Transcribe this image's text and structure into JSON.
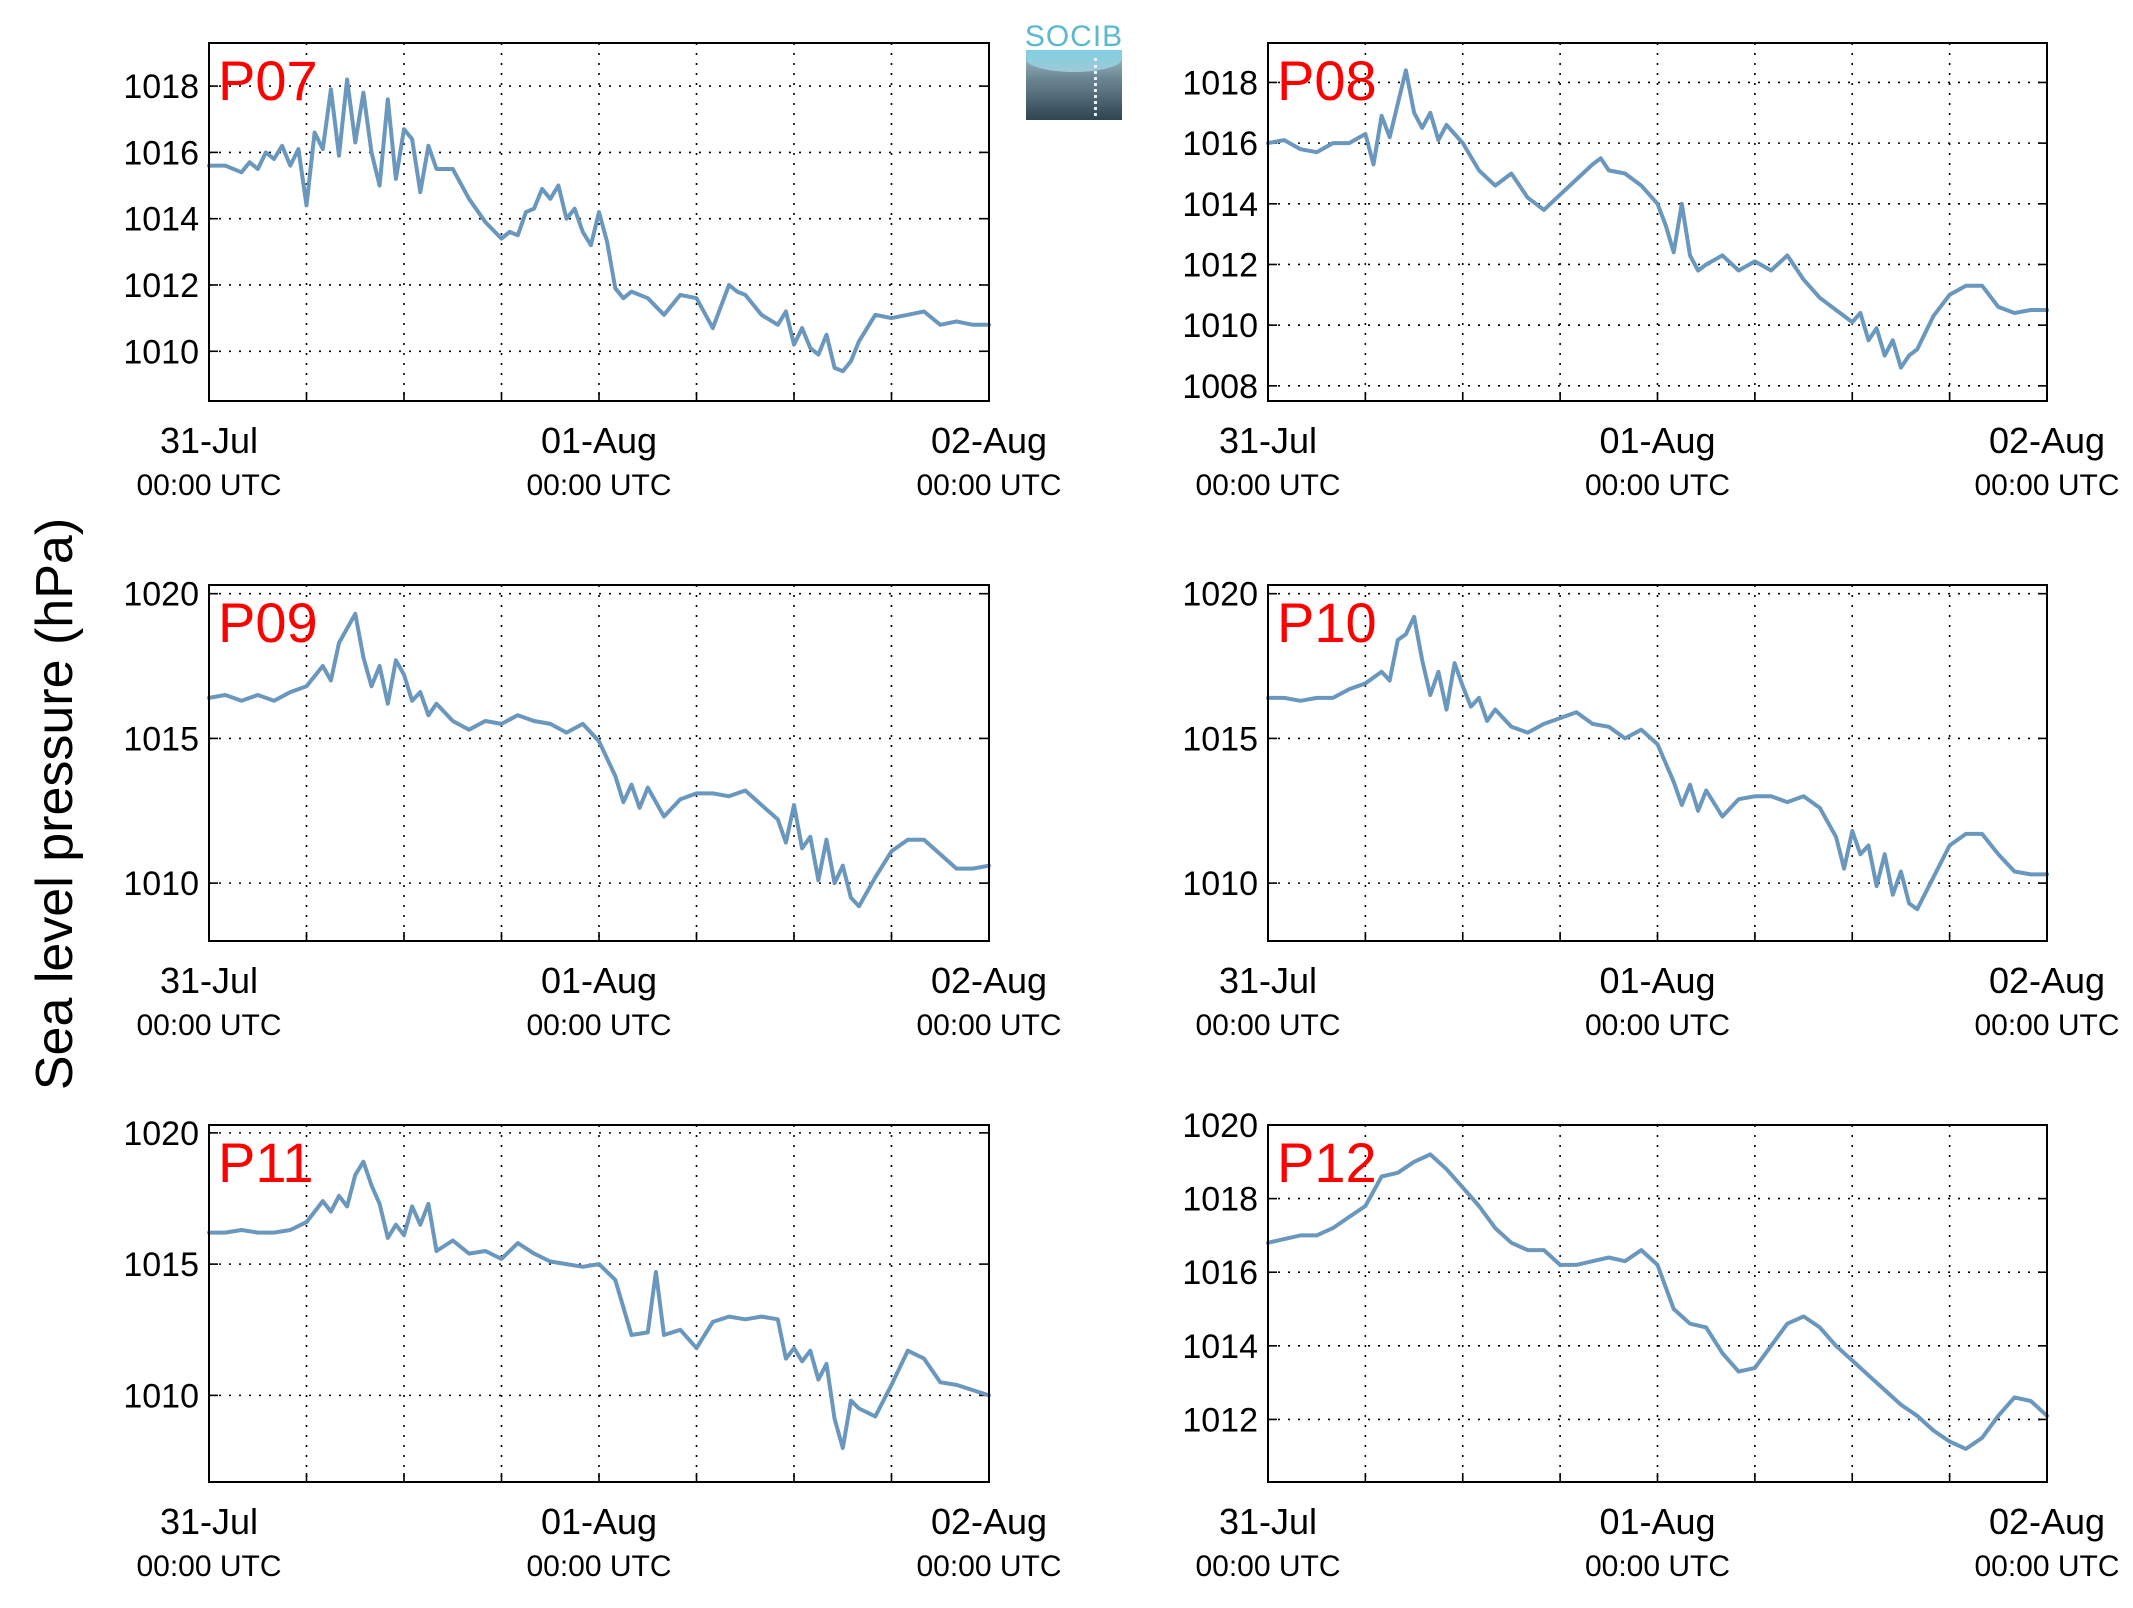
{
  "figure": {
    "ylabel": "Sea level pressure (hPa)",
    "logo_text": "SOCIB",
    "line_color": "#6a97bd",
    "label_color": "#ff0000"
  },
  "chart_data": [
    {
      "type": "line",
      "label": "P07",
      "x_range_hours": [
        0,
        48
      ],
      "x_ticks": [
        {
          "hour": 0,
          "date": "31-Jul",
          "time": "00:00 UTC"
        },
        {
          "hour": 24,
          "date": "01-Aug",
          "time": "00:00 UTC"
        },
        {
          "hour": 48,
          "date": "02-Aug",
          "time": "00:00 UTC"
        }
      ],
      "x_grid_hours": [
        6,
        12,
        18,
        24,
        30,
        36,
        42
      ],
      "ylim": [
        1008.5,
        1019.3
      ],
      "yticks": [
        1010,
        1012,
        1014,
        1016,
        1018
      ],
      "grid": true,
      "x": [
        0,
        1,
        2,
        2.5,
        3,
        3.5,
        4,
        4.5,
        5,
        5.5,
        6,
        6.5,
        7,
        7.5,
        8,
        8.5,
        9,
        9.5,
        10,
        10.5,
        11,
        11.5,
        12,
        12.5,
        13,
        13.5,
        14,
        15,
        16,
        17,
        18,
        18.5,
        19,
        19.5,
        20,
        20.5,
        21,
        21.5,
        22,
        22.5,
        23,
        23.5,
        24,
        24.5,
        25,
        25.5,
        26,
        27,
        28,
        29,
        30,
        31,
        32,
        32.5,
        33,
        34,
        35,
        35.5,
        36,
        36.5,
        37,
        37.5,
        38,
        38.5,
        39,
        39.5,
        40,
        41,
        42,
        43,
        44,
        45,
        46,
        47,
        48
      ],
      "y": [
        1015.6,
        1015.6,
        1015.4,
        1015.7,
        1015.5,
        1016,
        1015.8,
        1016.2,
        1015.6,
        1016.1,
        1014.4,
        1016.6,
        1016.1,
        1017.9,
        1015.9,
        1018.2,
        1016.3,
        1017.8,
        1016,
        1015,
        1017.6,
        1015.2,
        1016.7,
        1016.4,
        1014.8,
        1016.2,
        1015.5,
        1015.5,
        1014.6,
        1013.9,
        1013.4,
        1013.6,
        1013.5,
        1014.2,
        1014.3,
        1014.9,
        1014.6,
        1015,
        1014,
        1014.3,
        1013.6,
        1013.2,
        1014.2,
        1013.3,
        1011.9,
        1011.6,
        1011.8,
        1011.6,
        1011.1,
        1011.7,
        1011.6,
        1010.7,
        1012,
        1011.8,
        1011.7,
        1011.1,
        1010.8,
        1011.2,
        1010.2,
        1010.7,
        1010.1,
        1009.9,
        1010.5,
        1009.5,
        1009.4,
        1009.7,
        1010.3,
        1011.1,
        1011,
        1011.1,
        1011.2,
        1010.8,
        1010.9,
        1010.8,
        1010.8
      ]
    },
    {
      "type": "line",
      "label": "P08",
      "x_range_hours": [
        0,
        48
      ],
      "x_ticks": [
        {
          "hour": 0,
          "date": "31-Jul",
          "time": "00:00 UTC"
        },
        {
          "hour": 24,
          "date": "01-Aug",
          "time": "00:00 UTC"
        },
        {
          "hour": 48,
          "date": "02-Aug",
          "time": "00:00 UTC"
        }
      ],
      "x_grid_hours": [
        6,
        12,
        18,
        24,
        30,
        36,
        42
      ],
      "ylim": [
        1007.5,
        1019.3
      ],
      "yticks": [
        1008,
        1010,
        1012,
        1014,
        1016,
        1018
      ],
      "grid": true,
      "x": [
        0,
        1,
        2,
        3,
        4,
        5,
        6,
        6.5,
        7,
        7.5,
        8,
        8.5,
        9,
        9.5,
        10,
        10.5,
        11,
        11.5,
        12,
        13,
        14,
        15,
        16,
        17,
        18,
        19,
        20,
        20.5,
        21,
        22,
        23,
        24,
        24.5,
        25,
        25.5,
        26,
        26.5,
        27,
        28,
        29,
        30,
        31,
        32,
        33,
        34,
        35,
        36,
        36.5,
        37,
        37.5,
        38,
        38.5,
        39,
        39.5,
        40,
        41,
        42,
        43,
        44,
        45,
        46,
        47,
        48
      ],
      "y": [
        1016,
        1016.1,
        1015.8,
        1015.7,
        1016,
        1016,
        1016.3,
        1015.3,
        1016.9,
        1016.2,
        1017.3,
        1018.4,
        1017,
        1016.5,
        1017,
        1016.1,
        1016.6,
        1016.3,
        1016,
        1015.1,
        1014.6,
        1015,
        1014.2,
        1013.8,
        1014.3,
        1014.8,
        1015.3,
        1015.5,
        1015.1,
        1015,
        1014.6,
        1014,
        1013.3,
        1012.4,
        1014,
        1012.3,
        1011.8,
        1012,
        1012.3,
        1011.8,
        1012.1,
        1011.8,
        1012.3,
        1011.5,
        1010.9,
        1010.5,
        1010.1,
        1010.4,
        1009.5,
        1009.9,
        1009,
        1009.5,
        1008.6,
        1009,
        1009.2,
        1010.3,
        1011,
        1011.3,
        1011.3,
        1010.6,
        1010.4,
        1010.5,
        1010.5
      ]
    },
    {
      "type": "line",
      "label": "P09",
      "x_range_hours": [
        0,
        48
      ],
      "x_ticks": [
        {
          "hour": 0,
          "date": "31-Jul",
          "time": "00:00 UTC"
        },
        {
          "hour": 24,
          "date": "01-Aug",
          "time": "00:00 UTC"
        },
        {
          "hour": 48,
          "date": "02-Aug",
          "time": "00:00 UTC"
        }
      ],
      "x_grid_hours": [
        6,
        12,
        18,
        24,
        30,
        36,
        42
      ],
      "ylim": [
        1008,
        1020.3
      ],
      "yticks": [
        1010,
        1015,
        1020
      ],
      "grid": true,
      "x": [
        0,
        1,
        2,
        3,
        4,
        5,
        6,
        7,
        7.5,
        8,
        8.5,
        9,
        9.5,
        10,
        10.5,
        11,
        11.5,
        12,
        12.5,
        13,
        13.5,
        14,
        15,
        16,
        17,
        18,
        19,
        20,
        21,
        22,
        23,
        24,
        25,
        25.5,
        26,
        26.5,
        27,
        28,
        29,
        30,
        31,
        32,
        33,
        34,
        35,
        35.5,
        36,
        36.5,
        37,
        37.5,
        38,
        38.5,
        39,
        39.5,
        40,
        41,
        42,
        43,
        44,
        45,
        46,
        47,
        48
      ],
      "y": [
        1016.4,
        1016.5,
        1016.3,
        1016.5,
        1016.3,
        1016.6,
        1016.8,
        1017.5,
        1017,
        1018.3,
        1018.8,
        1019.3,
        1017.8,
        1016.8,
        1017.5,
        1016.2,
        1017.7,
        1017.2,
        1016.3,
        1016.6,
        1015.8,
        1016.2,
        1015.6,
        1015.3,
        1015.6,
        1015.5,
        1015.8,
        1015.6,
        1015.5,
        1015.2,
        1015.5,
        1014.9,
        1013.7,
        1012.8,
        1013.4,
        1012.6,
        1013.3,
        1012.3,
        1012.9,
        1013.1,
        1013.1,
        1013,
        1013.2,
        1012.7,
        1012.2,
        1011.4,
        1012.7,
        1011.2,
        1011.6,
        1010.1,
        1011.5,
        1010,
        1010.6,
        1009.5,
        1009.2,
        1010.2,
        1011.1,
        1011.5,
        1011.5,
        1011,
        1010.5,
        1010.5,
        1010.6
      ]
    },
    {
      "type": "line",
      "label": "P10",
      "x_range_hours": [
        0,
        48
      ],
      "x_ticks": [
        {
          "hour": 0,
          "date": "31-Jul",
          "time": "00:00 UTC"
        },
        {
          "hour": 24,
          "date": "01-Aug",
          "time": "00:00 UTC"
        },
        {
          "hour": 48,
          "date": "02-Aug",
          "time": "00:00 UTC"
        }
      ],
      "x_grid_hours": [
        6,
        12,
        18,
        24,
        30,
        36,
        42
      ],
      "ylim": [
        1008,
        1020.3
      ],
      "yticks": [
        1010,
        1015,
        1020
      ],
      "grid": true,
      "x": [
        0,
        1,
        2,
        3,
        4,
        5,
        6,
        7,
        7.5,
        8,
        8.5,
        9,
        9.5,
        10,
        10.5,
        11,
        11.5,
        12,
        12.5,
        13,
        13.5,
        14,
        15,
        16,
        17,
        18,
        19,
        20,
        21,
        22,
        23,
        24,
        25,
        25.5,
        26,
        26.5,
        27,
        28,
        29,
        30,
        31,
        32,
        33,
        34,
        35,
        35.5,
        36,
        36.5,
        37,
        37.5,
        38,
        38.5,
        39,
        39.5,
        40,
        41,
        42,
        43,
        44,
        45,
        46,
        47,
        48
      ],
      "y": [
        1016.4,
        1016.4,
        1016.3,
        1016.4,
        1016.4,
        1016.7,
        1016.9,
        1017.3,
        1017,
        1018.4,
        1018.6,
        1019.2,
        1017.7,
        1016.5,
        1017.3,
        1016,
        1017.6,
        1016.8,
        1016.1,
        1016.4,
        1015.6,
        1016,
        1015.4,
        1015.2,
        1015.5,
        1015.7,
        1015.9,
        1015.5,
        1015.4,
        1015,
        1015.3,
        1014.8,
        1013.5,
        1012.7,
        1013.4,
        1012.5,
        1013.2,
        1012.3,
        1012.9,
        1013,
        1013,
        1012.8,
        1013,
        1012.6,
        1011.6,
        1010.5,
        1011.8,
        1011,
        1011.3,
        1009.9,
        1011,
        1009.6,
        1010.4,
        1009.3,
        1009.1,
        1010.2,
        1011.3,
        1011.7,
        1011.7,
        1011,
        1010.4,
        1010.3,
        1010.3
      ]
    },
    {
      "type": "line",
      "label": "P11",
      "x_range_hours": [
        0,
        48
      ],
      "x_ticks": [
        {
          "hour": 0,
          "date": "31-Jul",
          "time": "00:00 UTC"
        },
        {
          "hour": 24,
          "date": "01-Aug",
          "time": "00:00 UTC"
        },
        {
          "hour": 48,
          "date": "02-Aug",
          "time": "00:00 UTC"
        }
      ],
      "x_grid_hours": [
        6,
        12,
        18,
        24,
        30,
        36,
        42
      ],
      "ylim": [
        1006.7,
        1020.3
      ],
      "yticks": [
        1010,
        1015,
        1020
      ],
      "grid": true,
      "x": [
        0,
        1,
        2,
        3,
        4,
        5,
        6,
        7,
        7.5,
        8,
        8.5,
        9,
        9.5,
        10,
        10.5,
        11,
        11.5,
        12,
        12.5,
        13,
        13.5,
        14,
        15,
        16,
        17,
        18,
        19,
        20,
        21,
        22,
        23,
        24,
        25,
        26,
        27,
        27.5,
        28,
        29,
        30,
        31,
        32,
        33,
        34,
        35,
        35.5,
        36,
        36.5,
        37,
        37.5,
        38,
        38.5,
        39,
        39.5,
        40,
        41,
        42,
        43,
        44,
        45,
        46,
        47,
        48
      ],
      "y": [
        1016.2,
        1016.2,
        1016.3,
        1016.2,
        1016.2,
        1016.3,
        1016.6,
        1017.4,
        1017,
        1017.6,
        1017.2,
        1018.4,
        1018.9,
        1018,
        1017.3,
        1016,
        1016.5,
        1016.1,
        1017.2,
        1016.5,
        1017.3,
        1015.5,
        1015.9,
        1015.4,
        1015.5,
        1015.2,
        1015.8,
        1015.4,
        1015.1,
        1015,
        1014.9,
        1015,
        1014.4,
        1012.3,
        1012.4,
        1014.7,
        1012.3,
        1012.5,
        1011.8,
        1012.8,
        1013,
        1012.9,
        1013,
        1012.9,
        1011.4,
        1011.8,
        1011.3,
        1011.7,
        1010.6,
        1011.2,
        1009.1,
        1008,
        1009.8,
        1009.5,
        1009.2,
        1010.4,
        1011.7,
        1011.4,
        1010.5,
        1010.4,
        1010.2,
        1010
      ]
    },
    {
      "type": "line",
      "label": "P12",
      "x_range_hours": [
        0,
        48
      ],
      "x_ticks": [
        {
          "hour": 0,
          "date": "31-Jul",
          "time": "00:00 UTC"
        },
        {
          "hour": 24,
          "date": "01-Aug",
          "time": "00:00 UTC"
        },
        {
          "hour": 48,
          "date": "02-Aug",
          "time": "00:00 UTC"
        }
      ],
      "x_grid_hours": [
        6,
        12,
        18,
        24,
        30,
        36,
        42
      ],
      "ylim": [
        1010.3,
        1020
      ],
      "yticks": [
        1012,
        1014,
        1016,
        1018,
        1020
      ],
      "grid": true,
      "x": [
        0,
        1,
        2,
        3,
        4,
        5,
        6,
        7,
        8,
        9,
        10,
        11,
        12,
        13,
        14,
        15,
        16,
        17,
        18,
        19,
        20,
        21,
        22,
        23,
        24,
        25,
        26,
        27,
        28,
        29,
        30,
        31,
        32,
        33,
        34,
        35,
        36,
        37,
        38,
        39,
        40,
        41,
        42,
        43,
        44,
        45,
        46,
        47,
        48
      ],
      "y": [
        1016.8,
        1016.9,
        1017,
        1017,
        1017.2,
        1017.5,
        1017.8,
        1018.6,
        1018.7,
        1019,
        1019.2,
        1018.8,
        1018.3,
        1017.8,
        1017.2,
        1016.8,
        1016.6,
        1016.6,
        1016.2,
        1016.2,
        1016.3,
        1016.4,
        1016.3,
        1016.6,
        1016.2,
        1015,
        1014.6,
        1014.5,
        1013.8,
        1013.3,
        1013.4,
        1014,
        1014.6,
        1014.8,
        1014.5,
        1014,
        1013.6,
        1013.2,
        1012.8,
        1012.4,
        1012.1,
        1011.7,
        1011.4,
        1011.2,
        1011.5,
        1012.1,
        1012.6,
        1012.5,
        1012.1
      ]
    }
  ]
}
